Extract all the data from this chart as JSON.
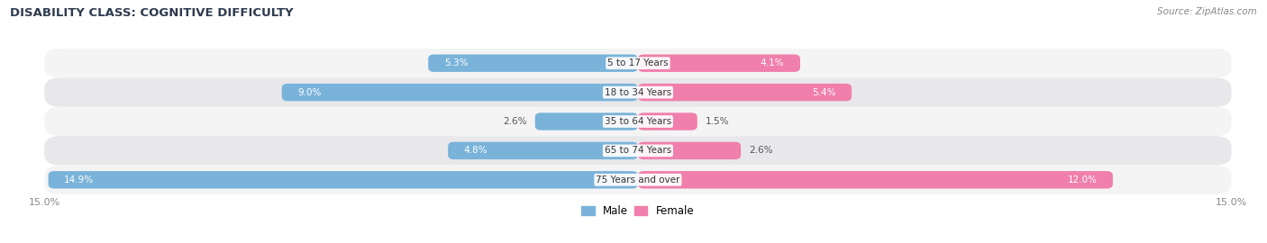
{
  "title": "DISABILITY CLASS: COGNITIVE DIFFICULTY",
  "source": "Source: ZipAtlas.com",
  "categories": [
    "5 to 17 Years",
    "18 to 34 Years",
    "35 to 64 Years",
    "65 to 74 Years",
    "75 Years and over"
  ],
  "male_values": [
    5.3,
    9.0,
    2.6,
    4.8,
    14.9
  ],
  "female_values": [
    4.1,
    5.4,
    1.5,
    2.6,
    12.0
  ],
  "max_val": 15.0,
  "male_color": "#7ab3d9",
  "female_color": "#f07fab",
  "row_bg_light": "#f4f4f5",
  "row_bg_dark": "#e8e8eb",
  "title_color": "#2d3b4e",
  "axis_label_color": "#888888",
  "source_color": "#888888",
  "label_dark": "#555555",
  "figsize": [
    14.06,
    2.7
  ],
  "dpi": 100
}
